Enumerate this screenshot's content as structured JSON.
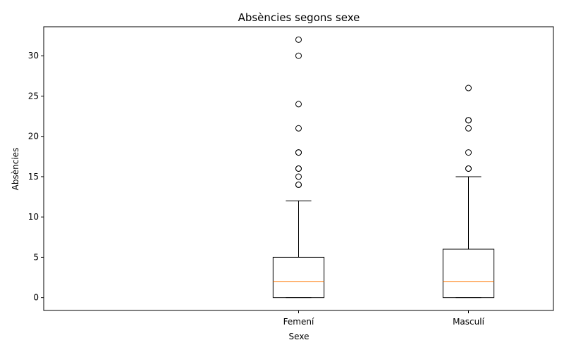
{
  "chart_data": {
    "type": "box",
    "title": "Absències segons sexe",
    "xlabel": "Sexe",
    "ylabel": "Absències",
    "ylim": [
      -1.6,
      33.6
    ],
    "yticks": [
      0,
      5,
      10,
      15,
      20,
      25,
      30
    ],
    "categories": [
      "Femení",
      "Masculí"
    ],
    "series": [
      {
        "category": "Femení",
        "whisker_low": 0,
        "q1": 0,
        "median": 2,
        "q3": 5,
        "whisker_high": 12,
        "outliers": [
          14,
          14,
          15,
          16,
          16,
          18,
          18,
          21,
          24,
          30,
          32
        ]
      },
      {
        "category": "Masculí",
        "whisker_low": 0,
        "q1": 0,
        "median": 2,
        "q3": 6,
        "whisker_high": 15,
        "outliers": [
          16,
          16,
          18,
          21,
          22,
          22,
          26
        ]
      }
    ],
    "colors": {
      "box": "#000000",
      "median": "#ff7f0e",
      "outlier": "#000000",
      "axis": "#000000"
    }
  }
}
